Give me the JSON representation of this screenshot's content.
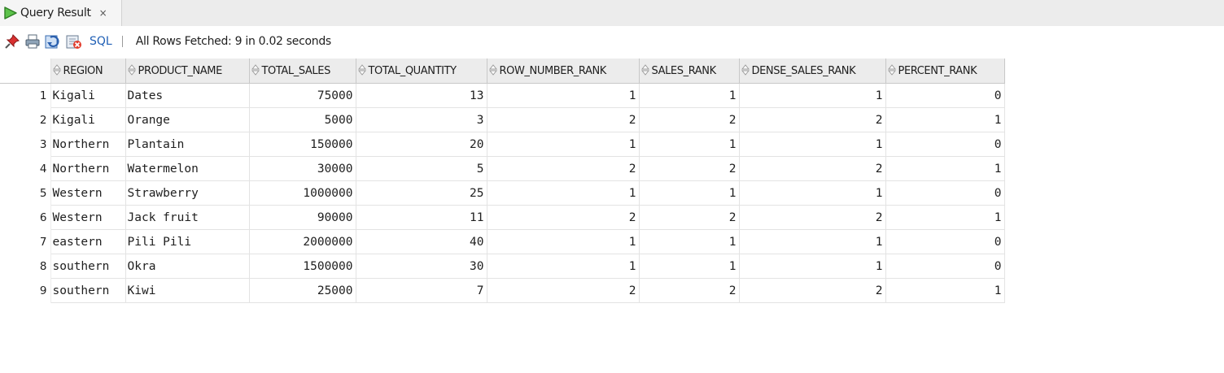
{
  "tab": {
    "label": "Query Result",
    "close": "×"
  },
  "toolbar": {
    "sql_label": "SQL",
    "status": "All Rows Fetched: 9 in 0.02 seconds",
    "icons": [
      "pin-icon",
      "print-icon",
      "refresh-icon",
      "excel-export-icon"
    ]
  },
  "grid": {
    "columns": [
      "REGION",
      "PRODUCT_NAME",
      "TOTAL_SALES",
      "TOTAL_QUANTITY",
      "ROW_NUMBER_RANK",
      "SALES_RANK",
      "DENSE_SALES_RANK",
      "PERCENT_RANK"
    ],
    "rows": [
      [
        "1",
        "Kigali",
        "Dates",
        "75000",
        "13",
        "1",
        "1",
        "1",
        "0"
      ],
      [
        "2",
        "Kigali",
        "Orange",
        "5000",
        "3",
        "2",
        "2",
        "2",
        "1"
      ],
      [
        "3",
        "Northern",
        "Plantain",
        "150000",
        "20",
        "1",
        "1",
        "1",
        "0"
      ],
      [
        "4",
        "Northern",
        "Watermelon",
        "30000",
        "5",
        "2",
        "2",
        "2",
        "1"
      ],
      [
        "5",
        "Western",
        "Strawberry",
        "1000000",
        "25",
        "1",
        "1",
        "1",
        "0"
      ],
      [
        "6",
        "Western",
        "Jack fruit",
        "90000",
        "11",
        "2",
        "2",
        "2",
        "1"
      ],
      [
        "7",
        "eastern",
        "Pili Pili",
        "2000000",
        "40",
        "1",
        "1",
        "1",
        "0"
      ],
      [
        "8",
        "southern",
        "Okra",
        "1500000",
        "30",
        "1",
        "1",
        "1",
        "0"
      ],
      [
        "9",
        "southern",
        "Kiwi",
        "25000",
        "7",
        "2",
        "2",
        "2",
        "1"
      ]
    ]
  },
  "colors": {
    "link": "#1f5fb5",
    "header_bg": "#ececec",
    "run_green": "#3a9a2a"
  }
}
